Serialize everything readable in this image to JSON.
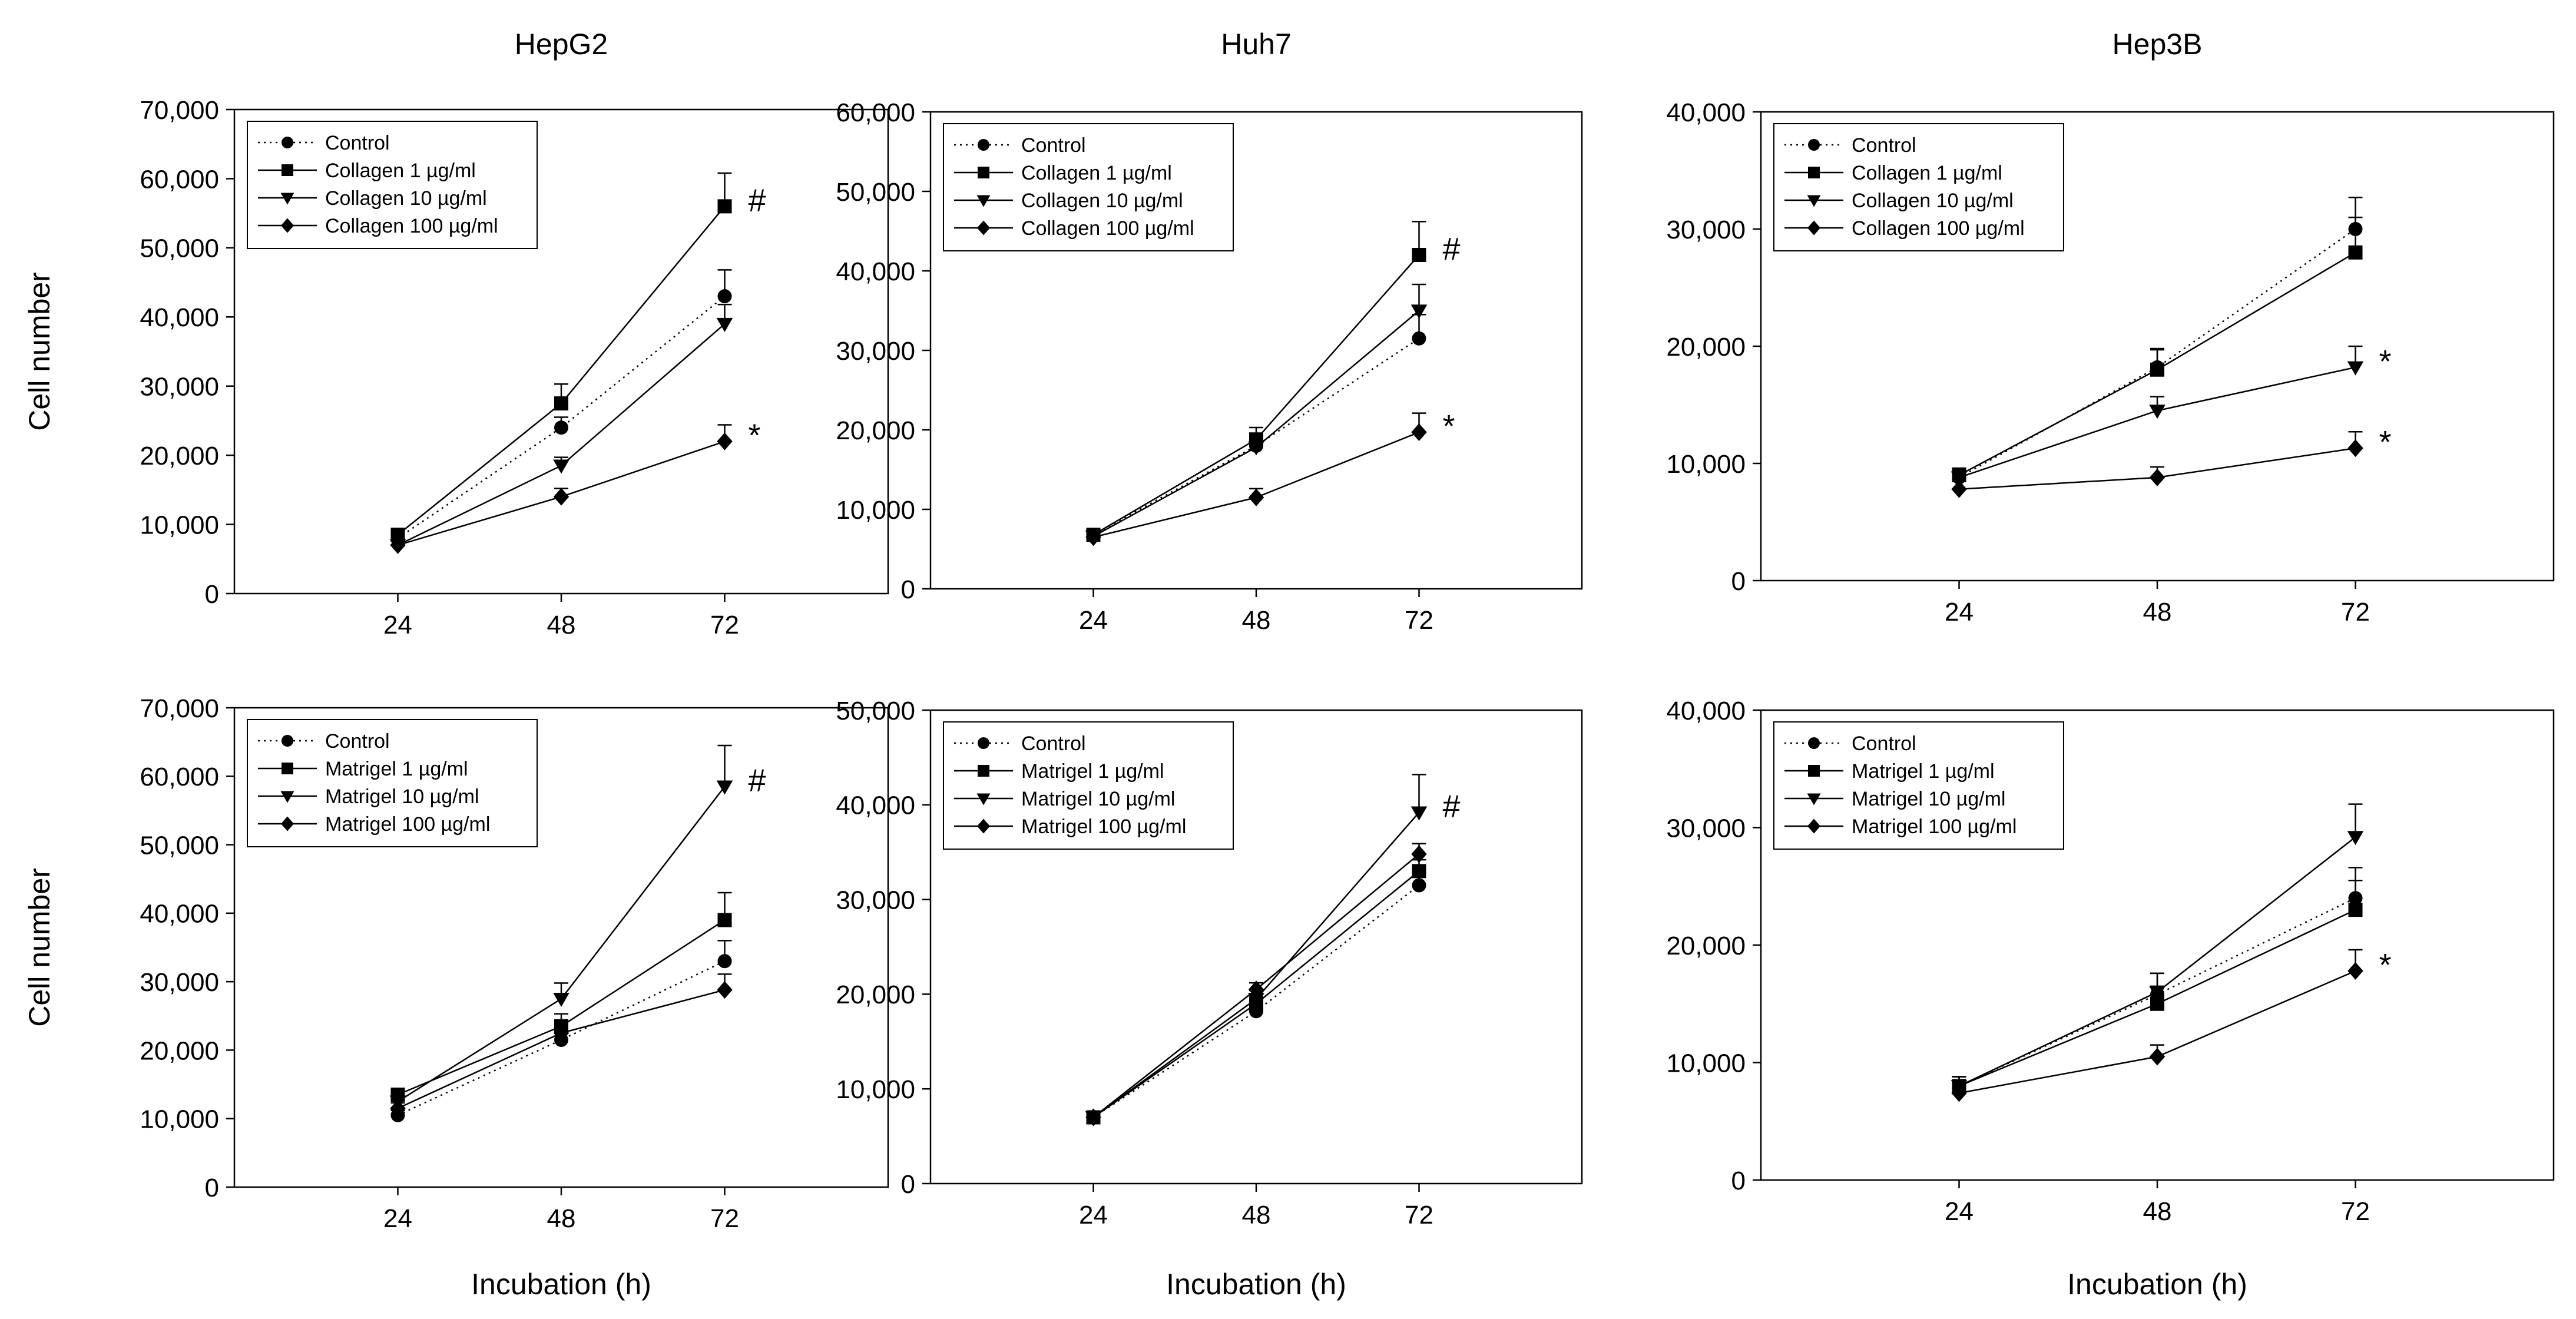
{
  "figure": {
    "x_axis_label": "Incubation (h)",
    "y_axis_label": "Cell number"
  },
  "chart_data": [
    {
      "type": "line",
      "title": "HepG2",
      "xlabel": "",
      "ylabel": "Cell number",
      "x": [
        "24",
        "48",
        "72"
      ],
      "ylim": [
        0,
        70000
      ],
      "yticks": [
        0,
        10000,
        20000,
        30000,
        40000,
        50000,
        60000,
        70000
      ],
      "ytick_labels": [
        "0",
        "10,000",
        "20,000",
        "30,000",
        "40,000",
        "50,000",
        "60,000",
        "70,000"
      ],
      "legend_position": "top-left",
      "series": [
        {
          "name": "Control",
          "marker": "circle",
          "line": "dotted",
          "values": [
            8000,
            24000,
            43000
          ],
          "errors": [
            700,
            1500,
            3800
          ]
        },
        {
          "name": "Collagen 1 µg/ml",
          "marker": "square",
          "line": "solid",
          "values": [
            8500,
            27500,
            56000
          ],
          "errors": [
            700,
            2800,
            4800
          ]
        },
        {
          "name": "Collagen 10 µg/ml",
          "marker": "triangle-down",
          "line": "solid",
          "values": [
            7000,
            18500,
            39000
          ],
          "errors": [
            700,
            1200,
            2800
          ]
        },
        {
          "name": "Collagen 100 µg/ml",
          "marker": "diamond",
          "line": "solid",
          "values": [
            7000,
            14000,
            22000
          ],
          "errors": [
            700,
            1200,
            2400
          ]
        }
      ],
      "annotations": [
        {
          "x": "72",
          "series": 1,
          "text": "#"
        },
        {
          "x": "72",
          "series": 3,
          "text": "*"
        }
      ]
    },
    {
      "type": "line",
      "title": "Huh7",
      "xlabel": "",
      "ylabel": "",
      "x": [
        "24",
        "48",
        "72"
      ],
      "ylim": [
        0,
        60000
      ],
      "yticks": [
        0,
        10000,
        20000,
        30000,
        40000,
        50000,
        60000
      ],
      "ytick_labels": [
        "0",
        "10,000",
        "20,000",
        "30,000",
        "40,000",
        "50,000",
        "60,000"
      ],
      "legend_position": "top-left",
      "series": [
        {
          "name": "Control",
          "marker": "circle",
          "line": "dotted",
          "values": [
            6800,
            18000,
            31500
          ],
          "errors": [
            600,
            1500,
            3000
          ]
        },
        {
          "name": "Collagen 1 µg/ml",
          "marker": "square",
          "line": "solid",
          "values": [
            6800,
            18800,
            42000
          ],
          "errors": [
            600,
            1500,
            4200
          ]
        },
        {
          "name": "Collagen 10 µg/ml",
          "marker": "triangle-down",
          "line": "solid",
          "values": [
            6600,
            17800,
            35000
          ],
          "errors": [
            600,
            1500,
            3300
          ]
        },
        {
          "name": "Collagen 100 µg/ml",
          "marker": "diamond",
          "line": "solid",
          "values": [
            6500,
            11500,
            19700
          ],
          "errors": [
            600,
            1100,
            2400
          ]
        }
      ],
      "annotations": [
        {
          "x": "72",
          "series": 1,
          "text": "#"
        },
        {
          "x": "72",
          "series": 3,
          "text": "*"
        }
      ]
    },
    {
      "type": "line",
      "title": "Hep3B",
      "xlabel": "",
      "ylabel": "",
      "x": [
        "24",
        "48",
        "72"
      ],
      "ylim": [
        0,
        40000
      ],
      "yticks": [
        0,
        10000,
        20000,
        30000,
        40000
      ],
      "ytick_labels": [
        "0",
        "10,000",
        "20,000",
        "30,000",
        "40,000"
      ],
      "legend_position": "top-left",
      "series": [
        {
          "name": "Control",
          "marker": "circle",
          "line": "dotted",
          "values": [
            8800,
            18200,
            30000
          ],
          "errors": [
            600,
            1600,
            2700
          ]
        },
        {
          "name": "Collagen 1 µg/ml",
          "marker": "square",
          "line": "solid",
          "values": [
            9000,
            18000,
            28000
          ],
          "errors": [
            600,
            1700,
            3000
          ]
        },
        {
          "name": "Collagen 10 µg/ml",
          "marker": "triangle-down",
          "line": "solid",
          "values": [
            8800,
            14500,
            18200
          ],
          "errors": [
            600,
            1200,
            1800
          ]
        },
        {
          "name": "Collagen 100 µg/ml",
          "marker": "diamond",
          "line": "solid",
          "values": [
            7800,
            8800,
            11300
          ],
          "errors": [
            700,
            900,
            1400
          ]
        }
      ],
      "annotations": [
        {
          "x": "72",
          "series": 2,
          "text": "*"
        },
        {
          "x": "72",
          "series": 3,
          "text": "*"
        }
      ]
    },
    {
      "type": "line",
      "title": "",
      "xlabel": "Incubation (h)",
      "ylabel": "Cell number",
      "x": [
        "24",
        "48",
        "72"
      ],
      "ylim": [
        0,
        70000
      ],
      "yticks": [
        0,
        10000,
        20000,
        30000,
        40000,
        50000,
        60000,
        70000
      ],
      "ytick_labels": [
        "0",
        "10,000",
        "20,000",
        "30,000",
        "40,000",
        "50,000",
        "60,000",
        "70,000"
      ],
      "legend_position": "top-left",
      "series": [
        {
          "name": "Control",
          "marker": "circle",
          "line": "dotted",
          "values": [
            10500,
            21500,
            33000
          ],
          "errors": [
            700,
            1300,
            3000
          ]
        },
        {
          "name": "Matrigel 1 µg/ml",
          "marker": "square",
          "line": "solid",
          "values": [
            13500,
            23500,
            39000
          ],
          "errors": [
            800,
            1800,
            4000
          ]
        },
        {
          "name": "Matrigel 10 µg/ml",
          "marker": "triangle-down",
          "line": "solid",
          "values": [
            12500,
            27500,
            58500
          ],
          "errors": [
            800,
            2300,
            6000
          ]
        },
        {
          "name": "Matrigel 100 µg/ml",
          "marker": "diamond",
          "line": "solid",
          "values": [
            11500,
            22500,
            28800
          ],
          "errors": [
            800,
            1300,
            2300
          ]
        }
      ],
      "annotations": [
        {
          "x": "72",
          "series": 2,
          "text": "#"
        }
      ]
    },
    {
      "type": "line",
      "title": "",
      "xlabel": "Incubation (h)",
      "ylabel": "",
      "x": [
        "24",
        "48",
        "72"
      ],
      "ylim": [
        0,
        50000
      ],
      "yticks": [
        0,
        10000,
        20000,
        30000,
        40000,
        50000
      ],
      "ytick_labels": [
        "0",
        "10,000",
        "20,000",
        "30,000",
        "40,000",
        "50,000"
      ],
      "legend_position": "top-left",
      "series": [
        {
          "name": "Control",
          "marker": "circle",
          "line": "dotted",
          "values": [
            7000,
            18200,
            31500
          ],
          "errors": [
            600,
            600,
            900
          ]
        },
        {
          "name": "Matrigel 1 µg/ml",
          "marker": "square",
          "line": "solid",
          "values": [
            7000,
            19000,
            33000
          ],
          "errors": [
            600,
            700,
            1200
          ]
        },
        {
          "name": "Matrigel 10 µg/ml",
          "marker": "triangle-down",
          "line": "solid",
          "values": [
            7000,
            19500,
            39200
          ],
          "errors": [
            600,
            900,
            4000
          ]
        },
        {
          "name": "Matrigel 100 µg/ml",
          "marker": "diamond",
          "line": "solid",
          "values": [
            7000,
            20500,
            34800
          ],
          "errors": [
            600,
            700,
            1100
          ]
        }
      ],
      "annotations": [
        {
          "x": "72",
          "series": 2,
          "text": "#"
        }
      ]
    },
    {
      "type": "line",
      "title": "",
      "xlabel": "Incubation (h)",
      "ylabel": "",
      "x": [
        "24",
        "48",
        "72"
      ],
      "ylim": [
        0,
        40000
      ],
      "yticks": [
        0,
        10000,
        20000,
        30000,
        40000
      ],
      "ytick_labels": [
        "0",
        "10,000",
        "20,000",
        "30,000",
        "40,000"
      ],
      "legend_position": "top-left",
      "series": [
        {
          "name": "Control",
          "marker": "circle",
          "line": "dotted",
          "values": [
            8000,
            15800,
            24000
          ],
          "errors": [
            800,
            1800,
            2600
          ]
        },
        {
          "name": "Matrigel 1 µg/ml",
          "marker": "square",
          "line": "solid",
          "values": [
            8000,
            15000,
            23000
          ],
          "errors": [
            800,
            1500,
            2500
          ]
        },
        {
          "name": "Matrigel 10 µg/ml",
          "marker": "triangle-down",
          "line": "solid",
          "values": [
            8000,
            16000,
            29200
          ],
          "errors": [
            800,
            1600,
            2800
          ]
        },
        {
          "name": "Matrigel 100 µg/ml",
          "marker": "diamond",
          "line": "solid",
          "values": [
            7400,
            10500,
            17800
          ],
          "errors": [
            700,
            1000,
            1800
          ]
        }
      ],
      "annotations": [
        {
          "x": "72",
          "series": 3,
          "text": "*"
        }
      ]
    }
  ]
}
